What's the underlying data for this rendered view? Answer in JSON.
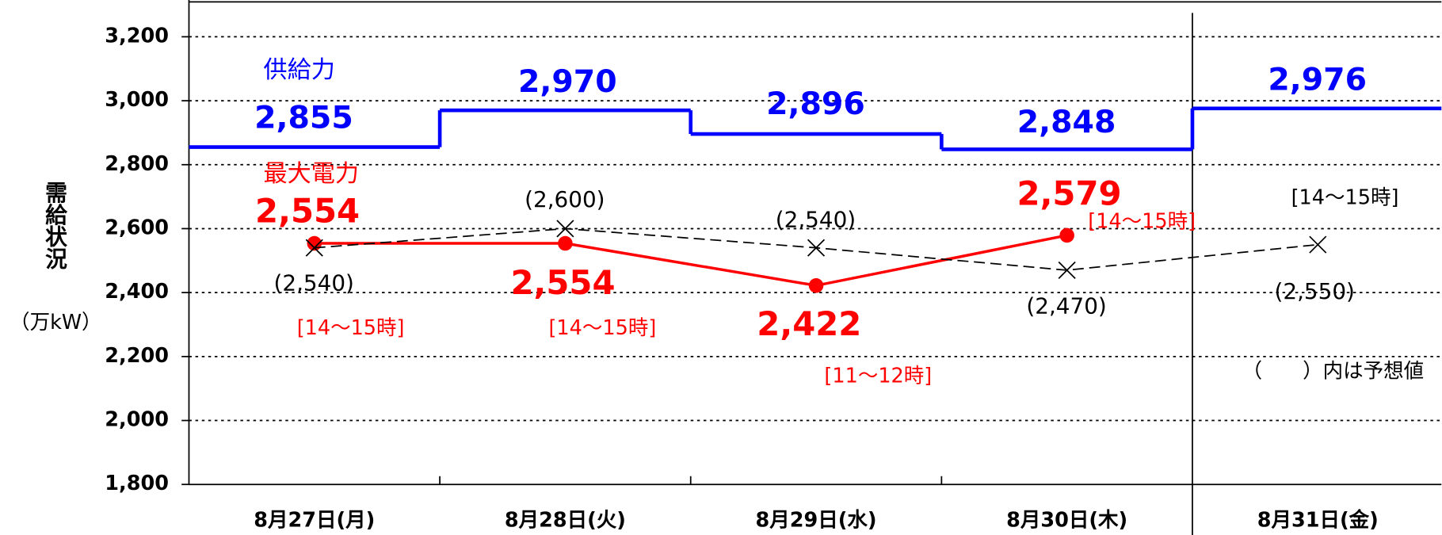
{
  "chart_data": {
    "type": "line",
    "y_label": "需給状況",
    "y_unit": "（万kW）",
    "note": "（　　）内は予想値",
    "categories": [
      "8月27日(月)",
      "8月28日(火)",
      "8月29日(水)",
      "8月30日(木)",
      "8月31日(金)"
    ],
    "ylim": [
      1800,
      3200
    ],
    "yticks": [
      {
        "value": 1800,
        "label": "1,800"
      },
      {
        "value": 2000,
        "label": "2,000"
      },
      {
        "value": 2200,
        "label": "2,200"
      },
      {
        "value": 2400,
        "label": "2,400"
      },
      {
        "value": 2600,
        "label": "2,600"
      },
      {
        "value": 2800,
        "label": "2,800"
      },
      {
        "value": 3000,
        "label": "3,000"
      },
      {
        "value": 3200,
        "label": "3,200"
      }
    ],
    "grid": true,
    "series": [
      {
        "name": "供給力",
        "color": "#0000ff",
        "style": "step",
        "values": [
          2855,
          2970,
          2896,
          2848,
          2976
        ],
        "value_labels": [
          "2,855",
          "2,970",
          "2,896",
          "2,848",
          "2,976"
        ]
      },
      {
        "name": "最大電力",
        "color": "#ff0000",
        "style": "solid",
        "values": [
          2554,
          2554,
          2422,
          2579,
          null
        ],
        "value_labels": [
          "2,554",
          "2,554",
          "2,422",
          "2,579",
          null
        ],
        "time_labels": [
          "[14～15時]",
          "[14～15時]",
          "[11～12時]",
          "[14～15時]",
          null
        ]
      },
      {
        "color": "#000000",
        "style": "dashed",
        "values": [
          2540,
          2600,
          2540,
          2470,
          2550
        ],
        "value_labels": [
          "(2,540)",
          "(2,600)",
          "(2,540)",
          "(2,470)",
          "(2,550)"
        ],
        "time_labels": [
          null,
          null,
          null,
          null,
          "[14～15時]"
        ]
      }
    ]
  }
}
